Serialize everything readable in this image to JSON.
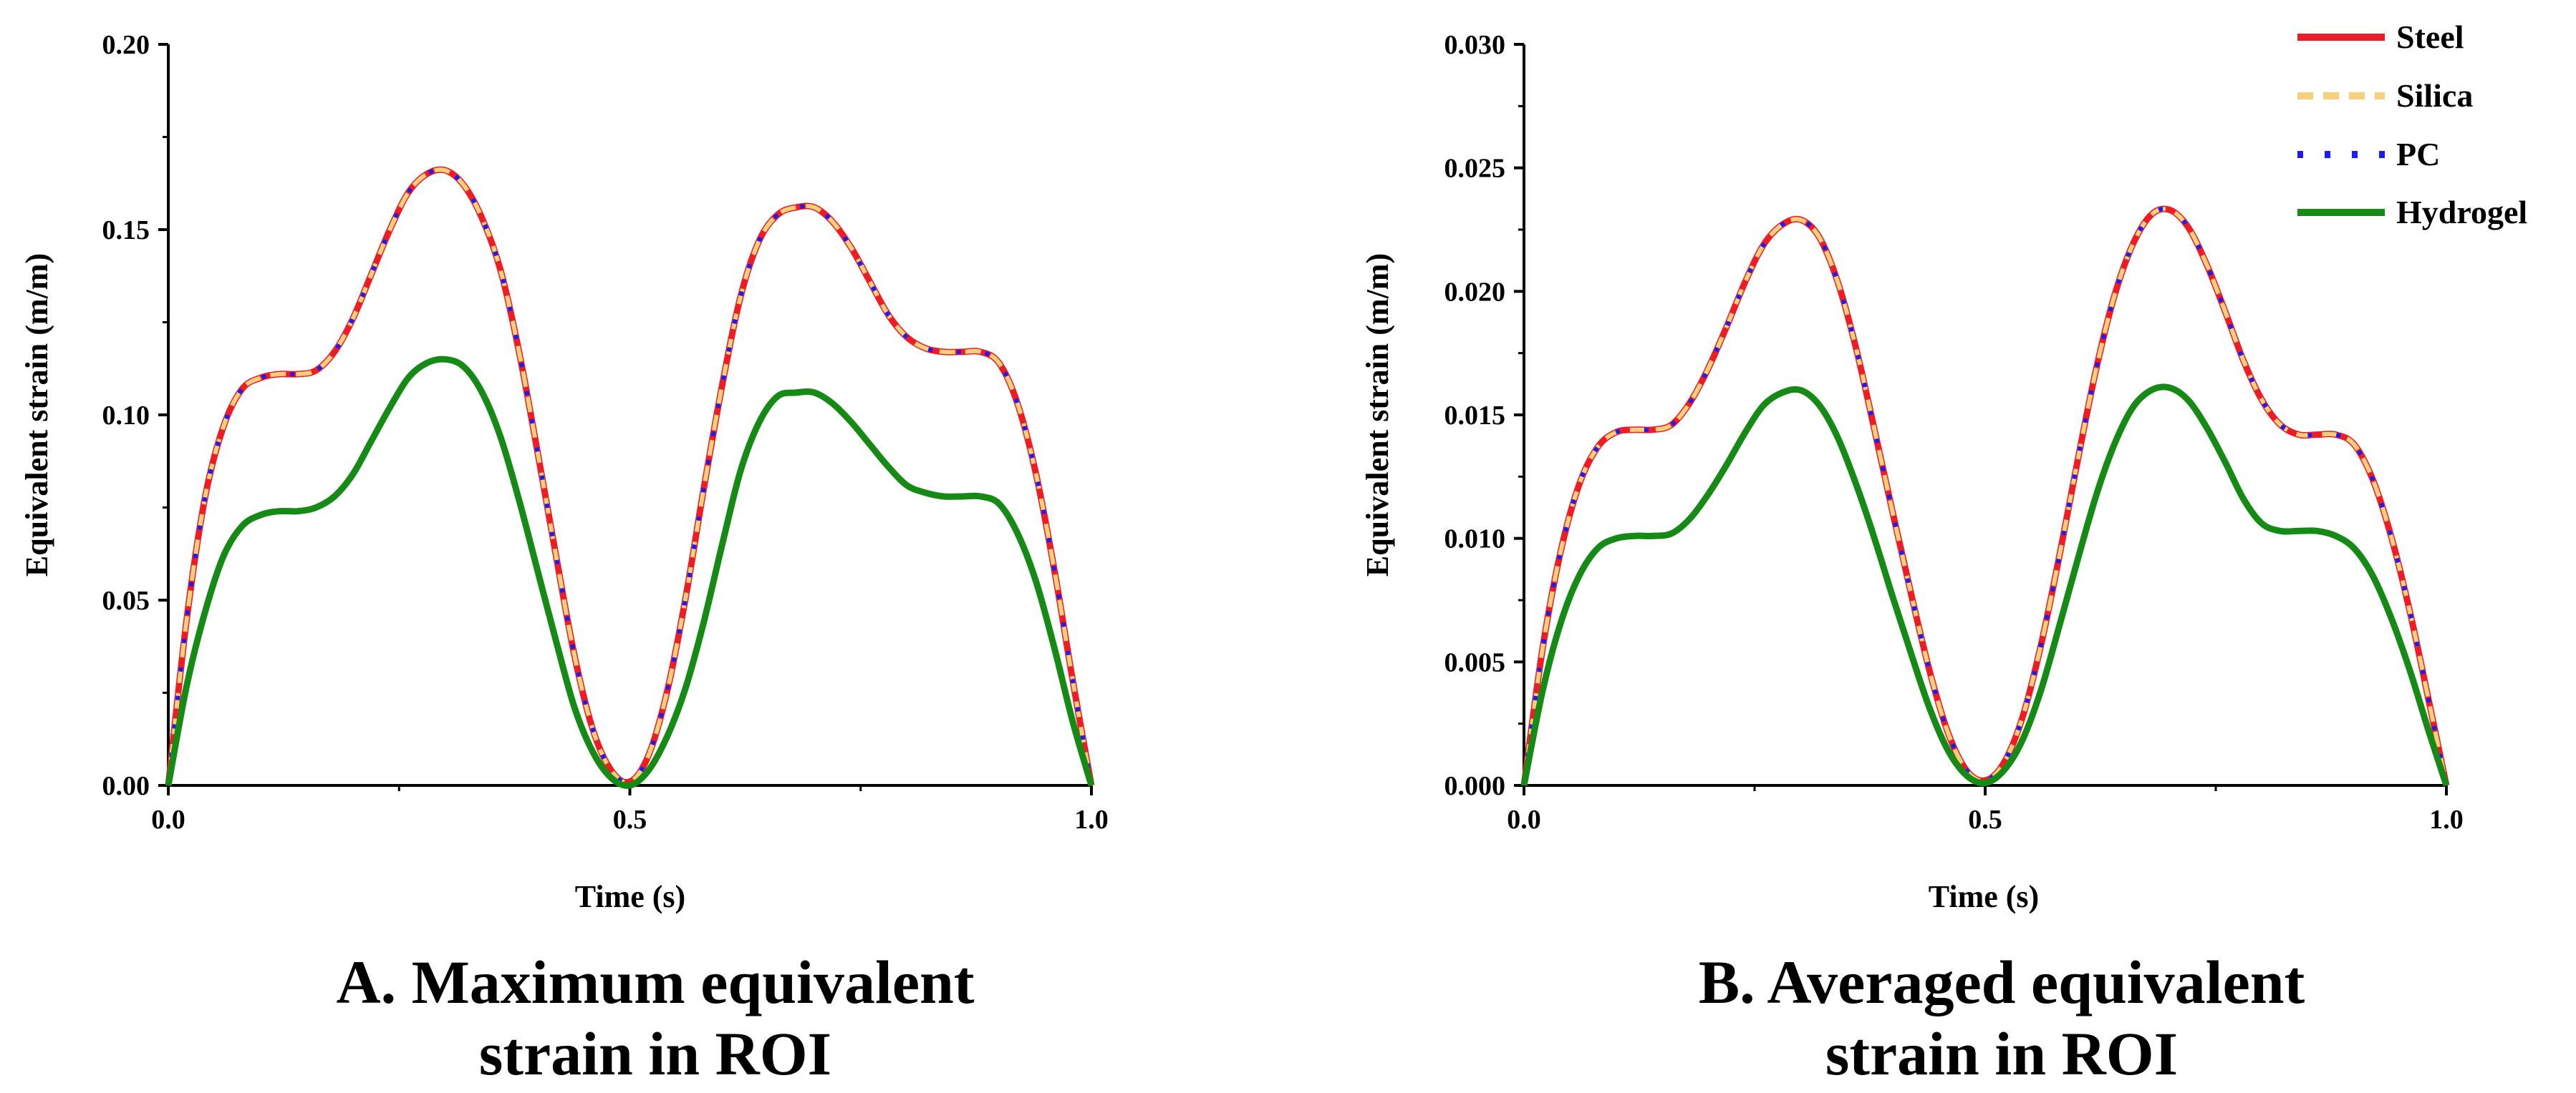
{
  "chart_data": [
    {
      "type": "line",
      "panel": "A",
      "caption_lines": [
        "A. Maximum equivalent",
        "strain in ROI"
      ],
      "xlabel": "Time (s)",
      "ylabel": "Equivalent strain (m/m)",
      "xlim": [
        0,
        1.0
      ],
      "ylim": [
        0,
        0.2
      ],
      "xticks": [
        0.0,
        0.5,
        1.0
      ],
      "xtick_labels": [
        "0.0",
        "0.5",
        "1.0"
      ],
      "yticks": [
        0,
        0.05,
        0.1,
        0.15,
        0.2
      ],
      "ytick_labels": [
        "0.00",
        "0.05",
        "0.10",
        "0.15",
        "0.20"
      ],
      "grid": false,
      "x": [
        0.0,
        0.02,
        0.04,
        0.06,
        0.08,
        0.1,
        0.12,
        0.14,
        0.16,
        0.18,
        0.2,
        0.22,
        0.24,
        0.26,
        0.28,
        0.3,
        0.32,
        0.34,
        0.36,
        0.38,
        0.4,
        0.42,
        0.44,
        0.46,
        0.48,
        0.5,
        0.52,
        0.54,
        0.56,
        0.58,
        0.6,
        0.62,
        0.64,
        0.66,
        0.68,
        0.7,
        0.72,
        0.74,
        0.76,
        0.78,
        0.8,
        0.82,
        0.84,
        0.86,
        0.88,
        0.9,
        0.92,
        0.94,
        0.96,
        0.98,
        1.0
      ],
      "series": [
        {
          "name": "Steel",
          "values": [
            0.0,
            0.045,
            0.078,
            0.097,
            0.107,
            0.11,
            0.111,
            0.111,
            0.112,
            0.117,
            0.126,
            0.138,
            0.15,
            0.16,
            0.165,
            0.166,
            0.162,
            0.153,
            0.139,
            0.117,
            0.09,
            0.062,
            0.035,
            0.015,
            0.004,
            0.001,
            0.008,
            0.025,
            0.05,
            0.08,
            0.108,
            0.132,
            0.147,
            0.154,
            0.156,
            0.156,
            0.152,
            0.145,
            0.136,
            0.127,
            0.121,
            0.118,
            0.117,
            0.117,
            0.117,
            0.114,
            0.103,
            0.084,
            0.058,
            0.028,
            0.0
          ]
        },
        {
          "name": "Silica",
          "values": [
            0.0,
            0.045,
            0.078,
            0.097,
            0.107,
            0.11,
            0.111,
            0.111,
            0.112,
            0.117,
            0.126,
            0.138,
            0.15,
            0.16,
            0.165,
            0.166,
            0.162,
            0.153,
            0.139,
            0.117,
            0.09,
            0.062,
            0.035,
            0.015,
            0.004,
            0.001,
            0.008,
            0.025,
            0.05,
            0.08,
            0.108,
            0.132,
            0.147,
            0.154,
            0.156,
            0.156,
            0.152,
            0.145,
            0.136,
            0.127,
            0.121,
            0.118,
            0.117,
            0.117,
            0.117,
            0.114,
            0.103,
            0.084,
            0.058,
            0.028,
            0.0
          ]
        },
        {
          "name": "PC",
          "values": [
            0.0,
            0.045,
            0.078,
            0.097,
            0.107,
            0.11,
            0.111,
            0.111,
            0.112,
            0.117,
            0.126,
            0.138,
            0.15,
            0.16,
            0.165,
            0.166,
            0.162,
            0.153,
            0.139,
            0.117,
            0.09,
            0.062,
            0.035,
            0.015,
            0.004,
            0.001,
            0.008,
            0.025,
            0.05,
            0.08,
            0.108,
            0.132,
            0.147,
            0.154,
            0.156,
            0.156,
            0.152,
            0.145,
            0.136,
            0.127,
            0.121,
            0.118,
            0.117,
            0.117,
            0.117,
            0.114,
            0.103,
            0.084,
            0.058,
            0.028,
            0.0
          ]
        },
        {
          "name": "Hydrogel",
          "values": [
            0.0,
            0.027,
            0.047,
            0.062,
            0.07,
            0.073,
            0.074,
            0.074,
            0.075,
            0.078,
            0.084,
            0.093,
            0.102,
            0.11,
            0.114,
            0.115,
            0.113,
            0.106,
            0.094,
            0.077,
            0.058,
            0.039,
            0.021,
            0.009,
            0.002,
            0.0,
            0.004,
            0.013,
            0.026,
            0.044,
            0.065,
            0.085,
            0.098,
            0.105,
            0.106,
            0.106,
            0.103,
            0.098,
            0.092,
            0.086,
            0.081,
            0.079,
            0.078,
            0.078,
            0.078,
            0.076,
            0.068,
            0.055,
            0.037,
            0.017,
            0.0
          ]
        }
      ]
    },
    {
      "type": "line",
      "panel": "B",
      "caption_lines": [
        "B. Averaged equivalent",
        "strain in ROI"
      ],
      "xlabel": "Time (s)",
      "ylabel": "Equivalent strain (m/m)",
      "xlim": [
        0,
        1.0
      ],
      "ylim": [
        0,
        0.03
      ],
      "xticks": [
        0.0,
        0.5,
        1.0
      ],
      "xtick_labels": [
        "0.0",
        "0.5",
        "1.0"
      ],
      "yticks": [
        0,
        0.005,
        0.01,
        0.015,
        0.02,
        0.025,
        0.03
      ],
      "ytick_labels": [
        "0.000",
        "0.005",
        "0.010",
        "0.015",
        "0.020",
        "0.025",
        "0.030"
      ],
      "grid": false,
      "legend_position": "top-right",
      "x": [
        0.0,
        0.02,
        0.04,
        0.06,
        0.08,
        0.1,
        0.12,
        0.14,
        0.16,
        0.18,
        0.2,
        0.22,
        0.24,
        0.26,
        0.28,
        0.3,
        0.32,
        0.34,
        0.36,
        0.38,
        0.4,
        0.42,
        0.44,
        0.46,
        0.48,
        0.5,
        0.52,
        0.54,
        0.56,
        0.58,
        0.6,
        0.62,
        0.64,
        0.66,
        0.68,
        0.7,
        0.72,
        0.74,
        0.76,
        0.78,
        0.8,
        0.82,
        0.84,
        0.86,
        0.88,
        0.9,
        0.92,
        0.94,
        0.96,
        0.98,
        1.0
      ],
      "series": [
        {
          "name": "Steel",
          "values": [
            0.0,
            0.0055,
            0.0095,
            0.0122,
            0.0137,
            0.0143,
            0.0144,
            0.0144,
            0.0146,
            0.0155,
            0.0169,
            0.0186,
            0.0204,
            0.0219,
            0.0227,
            0.0229,
            0.0222,
            0.0204,
            0.0177,
            0.0144,
            0.011,
            0.0077,
            0.0046,
            0.0021,
            0.0006,
            0.0002,
            0.0009,
            0.0027,
            0.0056,
            0.0092,
            0.0131,
            0.0168,
            0.0198,
            0.0219,
            0.0231,
            0.0233,
            0.0226,
            0.0211,
            0.0192,
            0.0172,
            0.0156,
            0.0146,
            0.0142,
            0.0142,
            0.0142,
            0.0138,
            0.0124,
            0.0101,
            0.0071,
            0.0036,
            0.0
          ]
        },
        {
          "name": "Silica",
          "values": [
            0.0,
            0.0055,
            0.0095,
            0.0122,
            0.0137,
            0.0143,
            0.0144,
            0.0144,
            0.0146,
            0.0155,
            0.0169,
            0.0186,
            0.0204,
            0.0219,
            0.0227,
            0.0229,
            0.0222,
            0.0204,
            0.0177,
            0.0144,
            0.011,
            0.0077,
            0.0046,
            0.0021,
            0.0006,
            0.0002,
            0.0009,
            0.0027,
            0.0056,
            0.0092,
            0.0131,
            0.0168,
            0.0198,
            0.0219,
            0.0231,
            0.0233,
            0.0226,
            0.0211,
            0.0192,
            0.0172,
            0.0156,
            0.0146,
            0.0142,
            0.0142,
            0.0142,
            0.0138,
            0.0124,
            0.0101,
            0.0071,
            0.0036,
            0.0
          ]
        },
        {
          "name": "PC",
          "values": [
            0.0,
            0.0055,
            0.0095,
            0.0122,
            0.0137,
            0.0143,
            0.0144,
            0.0144,
            0.0146,
            0.0155,
            0.0169,
            0.0186,
            0.0204,
            0.0219,
            0.0227,
            0.0229,
            0.0222,
            0.0204,
            0.0177,
            0.0144,
            0.011,
            0.0077,
            0.0046,
            0.0021,
            0.0006,
            0.0002,
            0.0009,
            0.0027,
            0.0056,
            0.0092,
            0.0131,
            0.0168,
            0.0198,
            0.0219,
            0.0231,
            0.0233,
            0.0226,
            0.0211,
            0.0192,
            0.0172,
            0.0156,
            0.0146,
            0.0142,
            0.0142,
            0.0142,
            0.0138,
            0.0124,
            0.0101,
            0.0071,
            0.0036,
            0.0
          ]
        },
        {
          "name": "Hydrogel",
          "values": [
            0.0,
            0.0038,
            0.0066,
            0.0085,
            0.0096,
            0.01,
            0.0101,
            0.0101,
            0.0102,
            0.0108,
            0.0118,
            0.013,
            0.0143,
            0.0154,
            0.0159,
            0.016,
            0.0154,
            0.0141,
            0.0122,
            0.01,
            0.0076,
            0.0053,
            0.0031,
            0.0014,
            0.0004,
            0.0001,
            0.0006,
            0.0018,
            0.0038,
            0.0064,
            0.0091,
            0.0117,
            0.0138,
            0.0153,
            0.016,
            0.0161,
            0.0156,
            0.0145,
            0.0131,
            0.0116,
            0.0106,
            0.0103,
            0.0103,
            0.0103,
            0.0101,
            0.0096,
            0.0085,
            0.0068,
            0.0047,
            0.0023,
            0.0
          ]
        }
      ]
    }
  ],
  "series_styles": {
    "Steel": {
      "color": "#ee1c24",
      "dash": "solid"
    },
    "Silica": {
      "color": "#f8cf7a",
      "dash": "dash"
    },
    "PC": {
      "color": "#1d1df2",
      "dash": "dot"
    },
    "Hydrogel": {
      "color": "#158a15",
      "dash": "solid"
    }
  },
  "legend": [
    "Steel",
    "Silica",
    "PC",
    "Hydrogel"
  ]
}
